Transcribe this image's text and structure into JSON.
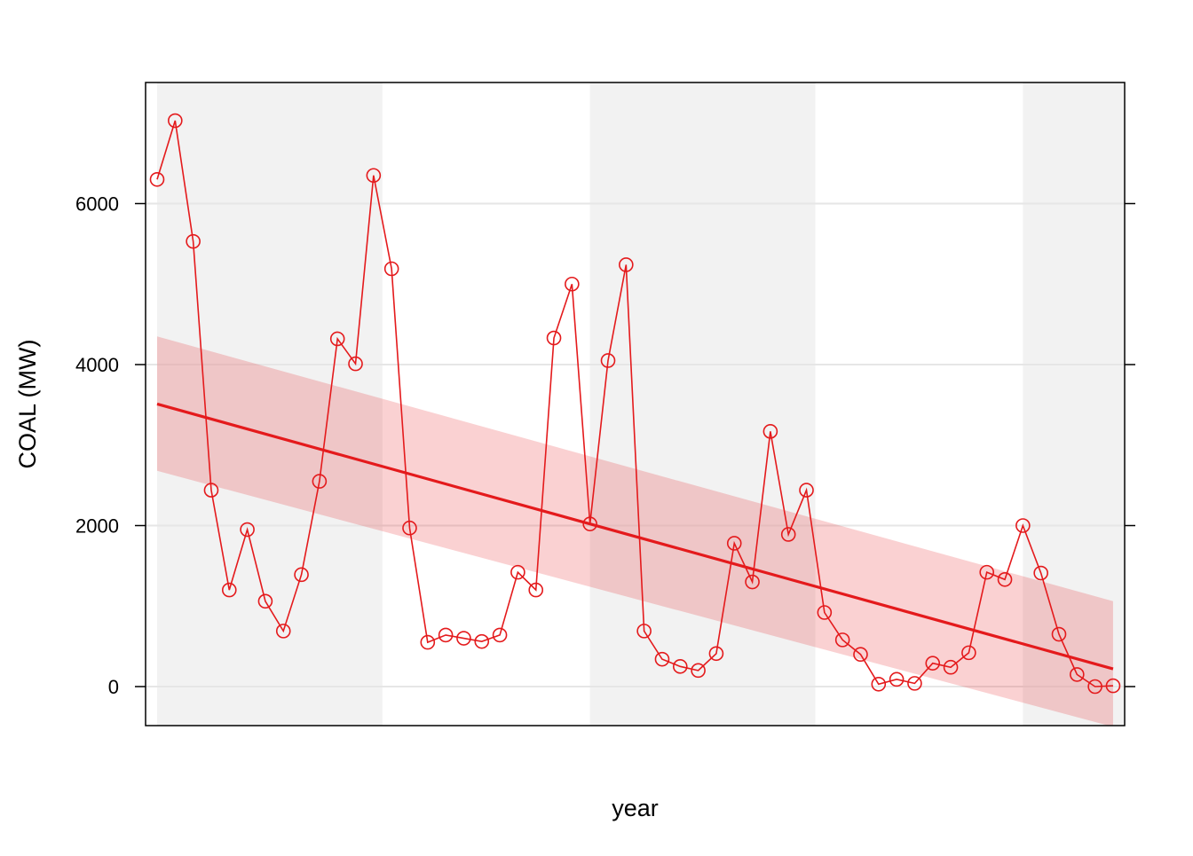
{
  "chart_data": {
    "type": "line",
    "title": "",
    "xlabel": "year",
    "ylabel": "COAL (MW)",
    "x_index_range": [
      1,
      54
    ],
    "ylim": [
      -500,
      7500
    ],
    "y_ticks": [
      0,
      2000,
      4000,
      6000
    ],
    "y_tick_labels": [
      "0",
      "2000",
      "4000",
      "6000"
    ],
    "grid": "horizontal",
    "legend": "none",
    "shaded_bands": [
      {
        "from_index": 1,
        "to_index": 13
      },
      {
        "from_index": 25,
        "to_index": 37
      },
      {
        "from_index": 49,
        "to_index": 54
      }
    ],
    "series": [
      {
        "color": "#e41a1c",
        "marker": "open-circle",
        "values": [
          6300,
          7030,
          5530,
          2440,
          1200,
          1950,
          1060,
          690,
          1390,
          2550,
          4320,
          4010,
          6350,
          5190,
          1970,
          550,
          640,
          600,
          560,
          640,
          1420,
          1200,
          4330,
          5000,
          2020,
          4050,
          5240,
          690,
          340,
          250,
          200,
          410,
          1780,
          1300,
          3170,
          1890,
          2440,
          920,
          580,
          400,
          30,
          90,
          40,
          290,
          240,
          420,
          1420,
          1330,
          2000,
          1410,
          650,
          150,
          0,
          10
        ]
      }
    ],
    "trend": {
      "type": "linear-fit",
      "color": "#e41a1c",
      "start": 3510,
      "end": 220,
      "ci_lower_start": 2680,
      "ci_upper_start": 4350,
      "ci_lower_end": -500,
      "ci_upper_end": 1060
    }
  }
}
